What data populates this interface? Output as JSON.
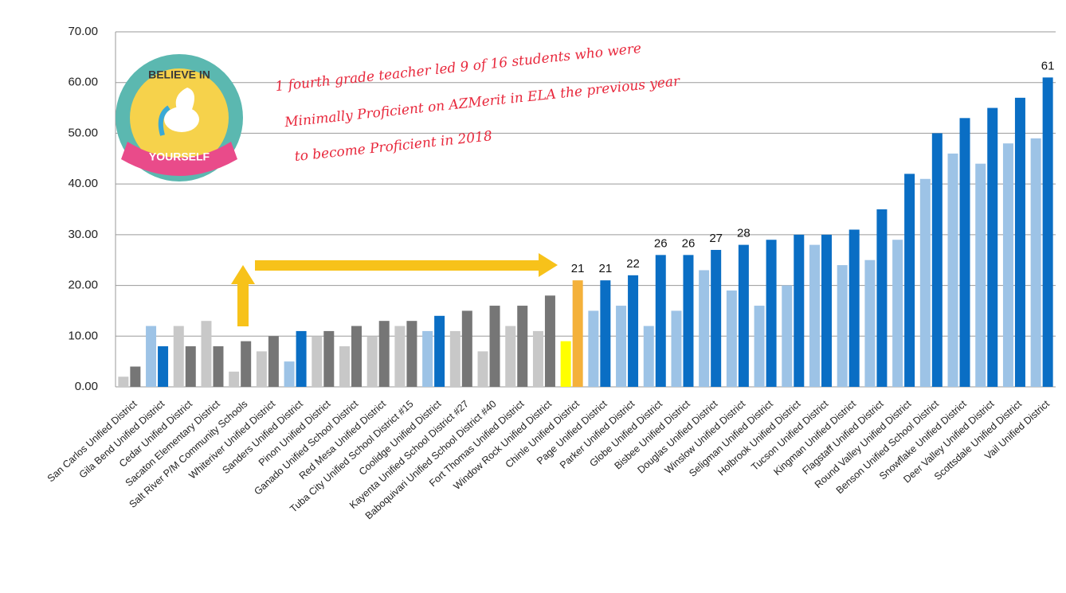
{
  "chart_data": {
    "type": "bar",
    "categories": [
      "San Carlos Unified District",
      "Gila Bend Unified District",
      "Cedar Unified District",
      "Sacaton Elementary District",
      "Salt River P/M Community Schools",
      "Whiteriver Unified District",
      "Sanders Unified District",
      "Pinon Unified District",
      "Ganado Unified School District",
      "Red Mesa Unified District",
      "Tuba City Unified School District #15",
      "Coolidge Unified District",
      "Kayenta Unified School District #27",
      "Baboquivari Unified School District #40",
      "Fort Thomas Unified District",
      "Window Rock Unified District",
      "Chinle Unified District",
      "Page Unified District",
      "Parker Unified District",
      "Globe Unified District",
      "Bisbee Unified District",
      "Douglas Unified District",
      "Winslow Unified District",
      "Seligman Unified District",
      "Holbrook Unified District",
      "Tucson Unified District",
      "Kingman Unified District",
      "Flagstaff Unified District",
      "Round Valley Unified District",
      "Benson Unified School District",
      "Snowflake Unified District",
      "Deer Valley Unified District",
      "Scottsdale Unified District",
      "Vail Unified District"
    ],
    "series": [
      {
        "values": [
          2,
          12,
          12,
          13,
          3,
          7,
          5,
          10,
          8,
          10,
          12,
          11,
          11,
          7,
          12,
          11,
          9,
          15,
          16,
          12,
          15,
          23,
          19,
          16,
          20,
          28,
          24,
          25,
          29,
          41,
          46,
          44,
          48,
          49
        ],
        "colors": [
          "#c8c8c8",
          "#9dc3e6",
          "#c8c8c8",
          "#c8c8c8",
          "#c8c8c8",
          "#c8c8c8",
          "#9dc3e6",
          "#c8c8c8",
          "#c8c8c8",
          "#c8c8c8",
          "#c8c8c8",
          "#9dc3e6",
          "#c8c8c8",
          "#c8c8c8",
          "#c8c8c8",
          "#c8c8c8",
          "#ffff00",
          "#9dc3e6",
          "#9dc3e6",
          "#9dc3e6",
          "#9dc3e6",
          "#9dc3e6",
          "#9dc3e6",
          "#9dc3e6",
          "#9dc3e6",
          "#9dc3e6",
          "#9dc3e6",
          "#9dc3e6",
          "#9dc3e6",
          "#9dc3e6",
          "#9dc3e6",
          "#9dc3e6",
          "#9dc3e6",
          "#9dc3e6"
        ]
      },
      {
        "values": [
          4,
          8,
          8,
          8,
          9,
          10,
          11,
          11,
          12,
          13,
          13,
          14,
          15,
          16,
          16,
          18,
          21,
          21,
          22,
          26,
          26,
          27,
          28,
          29,
          30,
          30,
          31,
          35,
          42,
          50,
          53,
          55,
          57,
          61
        ],
        "colors": [
          "#767676",
          "#0a6ec4",
          "#767676",
          "#767676",
          "#767676",
          "#767676",
          "#0a6ec4",
          "#767676",
          "#767676",
          "#767676",
          "#767676",
          "#0a6ec4",
          "#767676",
          "#767676",
          "#767676",
          "#767676",
          "#f4b13a",
          "#0a6ec4",
          "#0a6ec4",
          "#0a6ec4",
          "#0a6ec4",
          "#0a6ec4",
          "#0a6ec4",
          "#0a6ec4",
          "#0a6ec4",
          "#0a6ec4",
          "#0a6ec4",
          "#0a6ec4",
          "#0a6ec4",
          "#0a6ec4",
          "#0a6ec4",
          "#0a6ec4",
          "#0a6ec4",
          "#0a6ec4"
        ],
        "value_labels": [
          null,
          null,
          null,
          null,
          null,
          null,
          null,
          null,
          null,
          null,
          null,
          null,
          null,
          null,
          null,
          null,
          "21",
          "21",
          "22",
          "26",
          "26",
          "27",
          "28",
          null,
          null,
          null,
          null,
          null,
          null,
          null,
          null,
          null,
          null,
          "61"
        ]
      }
    ],
    "ylim": [
      0,
      70
    ],
    "yticks": [
      {
        "value": 0,
        "label": "0.00"
      },
      {
        "value": 10,
        "label": "10.00"
      },
      {
        "value": 20,
        "label": "20.00"
      },
      {
        "value": 30,
        "label": "30.00"
      },
      {
        "value": 40,
        "label": "40.00"
      },
      {
        "value": 50,
        "label": "50.00"
      },
      {
        "value": 60,
        "label": "60.00"
      },
      {
        "value": 70,
        "label": "70.00"
      }
    ],
    "grid": true,
    "annotations": [
      "1 fourth grade teacher led 9 of 16 students who were",
      "Minimally Proficient on AZMerit  in ELA  the previous year",
      "to become Proficient in 2018"
    ],
    "logo_text": [
      "BELIEVE IN",
      "YOURSELF"
    ]
  }
}
